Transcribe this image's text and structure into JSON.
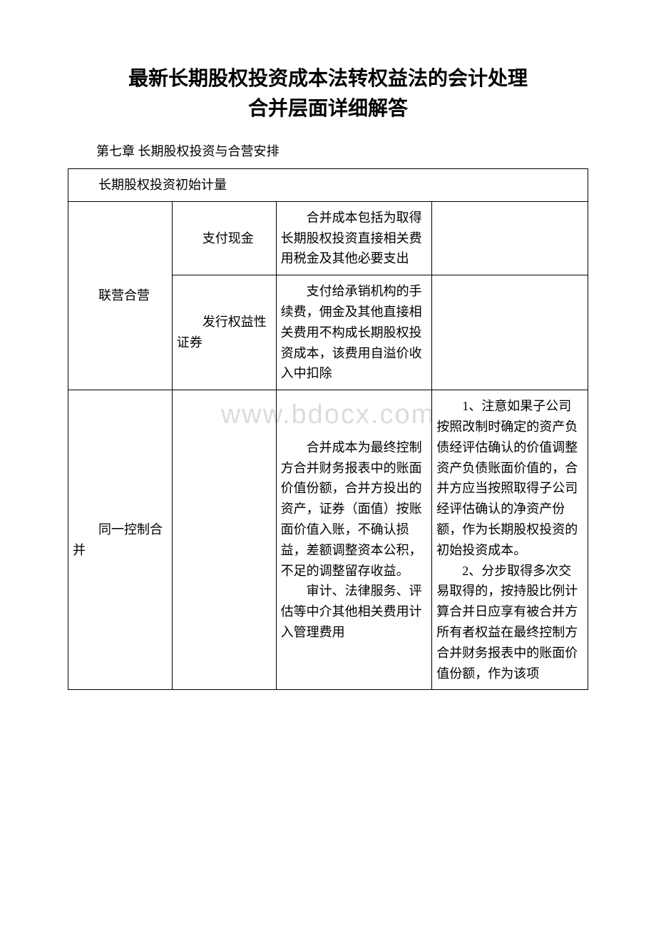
{
  "title_line1": "最新长期股权投资成本法转权益法的会计处理",
  "title_line2": "合并层面详细解答",
  "chapter": "第七章 长期股权投资与合营安排",
  "watermark": "www.bdocx.com",
  "table": {
    "header": "长期股权投资初始计量",
    "rows": [
      {
        "col1": "联营合营",
        "col2a": "支付现金",
        "col3a": "合并成本包括为取得长期股权投资直接相关费用税金及其他必要支出",
        "col4a": "",
        "col2b": "发行权益性证券",
        "col3b": "支付给承销机构的手续费，佣金及其他直接相关费用不构成长期股权投资成本，该费用自溢价收入中扣除",
        "col4b": ""
      },
      {
        "col1": "同一控制合并",
        "col2": "",
        "col3_p1": "合并成本为最终控制方合并财务报表中的账面价值份额，合并方投出的资产，证券（面值）按账面价值入账，不确认损益，差额调整资本公积，不足的调整留存收益。",
        "col3_p2": "审计、法律服务、评估等中介其他相关费用计入管理费用",
        "col4_p1": "1、注意如果子公司按照改制时确定的资产负债经评估确认的价值调整资产负债账面价值的，合并方应当按照取得子公司经评估确认的净资产份额，作为长期股权投资的初始投资成本。",
        "col4_p2": "2、分步取得多次交易取得的，按持股比例计算合并日应享有被合并方所有者权益在最终控制方合并财务报表中的账面价值份额，作为该项"
      }
    ]
  },
  "colors": {
    "text": "#000000",
    "background": "#ffffff",
    "border": "#000000",
    "watermark": "#dcdcdc"
  },
  "fonts": {
    "body_size": 18,
    "title_size": 28,
    "watermark_size": 38
  }
}
